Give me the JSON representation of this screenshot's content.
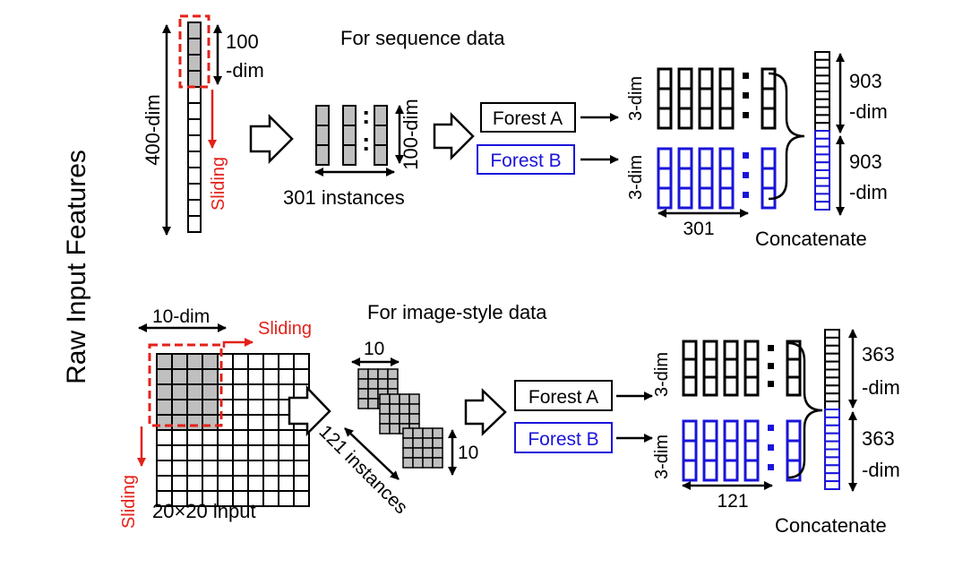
{
  "side_title": "Raw Input Features",
  "sequence": {
    "title": "For sequence data",
    "window_size_top": "100",
    "window_size_bottom": "-dim",
    "input_dim": "400-dim",
    "sliding": "Sliding",
    "instance_dim": "100-dim",
    "instances": "301 instances",
    "forest_a": "Forest A",
    "forest_b": "Forest B",
    "class_dim_a": "3-dim",
    "class_dim_b": "3-dim",
    "count": "301",
    "output_a_top": "903",
    "output_a_bottom": "-dim",
    "output_b_top": "903",
    "output_b_bottom": "-dim",
    "concat": "Concatenate"
  },
  "image": {
    "title": "For image-style data",
    "window_dim": "10-dim",
    "sliding_right": "Sliding",
    "sliding_down": "Sliding",
    "input": "20×20 input",
    "patch_top": "10",
    "patch_side": "10",
    "instances": "121 instances",
    "forest_a": "Forest A",
    "forest_b": "Forest B",
    "class_dim_a": "3-dim",
    "class_dim_b": "3-dim",
    "count": "121",
    "output_a_top": "363",
    "output_a_bottom": "-dim",
    "output_b_top": "363",
    "output_b_bottom": "-dim",
    "concat": "Concatenate"
  },
  "colors": {
    "black": "#000000",
    "red": "#e32119",
    "blue": "#1a14d9",
    "gray": "#bfbfbf"
  }
}
